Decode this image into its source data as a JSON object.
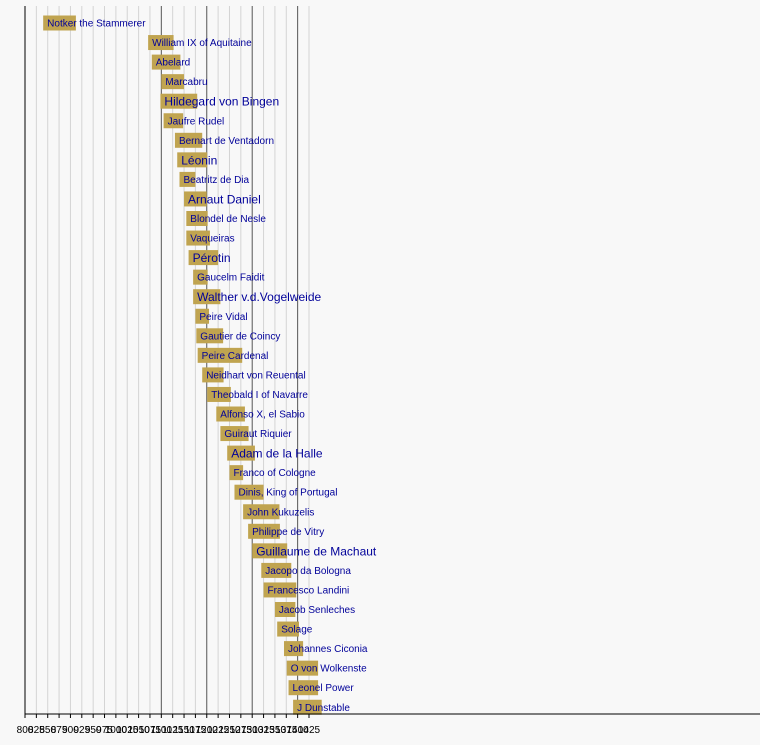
{
  "chart_data": {
    "type": "bar",
    "orientation": "horizontal-timeline",
    "title": "",
    "xlabel": "",
    "ylabel": "",
    "xlim": [
      800,
      1425
    ],
    "x_ticks": [
      800,
      825,
      850,
      875,
      900,
      925,
      950,
      975,
      1000,
      1025,
      1050,
      1075,
      1100,
      1125,
      1150,
      1175,
      1200,
      1225,
      1250,
      1275,
      1300,
      1325,
      1350,
      1375,
      1400,
      1425
    ],
    "major_gridlines": [
      1100,
      1200,
      1300,
      1400
    ],
    "grid": true,
    "bar_color": "#c0a450",
    "label_color": "#000099",
    "series": [
      {
        "name": "Notker the Stammerer",
        "start": 840,
        "end": 912,
        "emphasis": false
      },
      {
        "name": "William IX of Aquitaine",
        "start": 1071,
        "end": 1127,
        "emphasis": false
      },
      {
        "name": "Abelard",
        "start": 1079,
        "end": 1142,
        "emphasis": false
      },
      {
        "name": "Marcabru",
        "start": 1100,
        "end": 1150,
        "emphasis": false
      },
      {
        "name": "Hildegard von Bingen",
        "start": 1098,
        "end": 1179,
        "emphasis": true
      },
      {
        "name": "Jaufre Rudel",
        "start": 1105,
        "end": 1148,
        "emphasis": false
      },
      {
        "name": "Bernart de Ventadorn",
        "start": 1130,
        "end": 1190,
        "emphasis": false
      },
      {
        "name": "Léonin",
        "start": 1135,
        "end": 1201,
        "emphasis": true
      },
      {
        "name": "Beatritz de Dia",
        "start": 1140,
        "end": 1175,
        "emphasis": false
      },
      {
        "name": "Arnaut Daniel",
        "start": 1150,
        "end": 1200,
        "emphasis": true
      },
      {
        "name": "Blondel de Nesle",
        "start": 1155,
        "end": 1202,
        "emphasis": false
      },
      {
        "name": "Vaqueiras",
        "start": 1155,
        "end": 1207,
        "emphasis": false
      },
      {
        "name": "Pérotin",
        "start": 1160,
        "end": 1225,
        "emphasis": true
      },
      {
        "name": "Gaucelm Faidit",
        "start": 1170,
        "end": 1202,
        "emphasis": false
      },
      {
        "name": "Walther v.d.Vogelweide",
        "start": 1170,
        "end": 1230,
        "emphasis": true
      },
      {
        "name": "Peire Vidal",
        "start": 1175,
        "end": 1205,
        "emphasis": false
      },
      {
        "name": "Gautier de Coincy",
        "start": 1177,
        "end": 1236,
        "emphasis": false
      },
      {
        "name": "Peire Cardenal",
        "start": 1180,
        "end": 1278,
        "emphasis": false
      },
      {
        "name": "Neidhart von Reuental",
        "start": 1190,
        "end": 1237,
        "emphasis": false
      },
      {
        "name": "Theobald I of Navarre",
        "start": 1201,
        "end": 1253,
        "emphasis": false
      },
      {
        "name": "Alfonso X, el Sabio",
        "start": 1221,
        "end": 1284,
        "emphasis": false
      },
      {
        "name": "Guiraut Riquier",
        "start": 1230,
        "end": 1292,
        "emphasis": false
      },
      {
        "name": "Adam de la Halle",
        "start": 1245,
        "end": 1306,
        "emphasis": true
      },
      {
        "name": "Franco of Cologne",
        "start": 1250,
        "end": 1280,
        "emphasis": false
      },
      {
        "name": "Dinis, King of Portugal",
        "start": 1261,
        "end": 1325,
        "emphasis": false
      },
      {
        "name": "John Kukuzelis",
        "start": 1280,
        "end": 1360,
        "emphasis": false
      },
      {
        "name": "Philippe de Vitry",
        "start": 1291,
        "end": 1361,
        "emphasis": false
      },
      {
        "name": "Guillaume de Machaut",
        "start": 1300,
        "end": 1377,
        "emphasis": true
      },
      {
        "name": "Jacopo da Bologna",
        "start": 1320,
        "end": 1386,
        "emphasis": false
      },
      {
        "name": "Francesco Landini",
        "start": 1325,
        "end": 1397,
        "emphasis": false
      },
      {
        "name": "Jacob Senleches",
        "start": 1350,
        "end": 1395,
        "emphasis": false
      },
      {
        "name": "Solage",
        "start": 1355,
        "end": 1403,
        "emphasis": false
      },
      {
        "name": "Johannes Ciconia",
        "start": 1370,
        "end": 1412,
        "emphasis": false
      },
      {
        "name": "O von Wolkenste",
        "start": 1376,
        "end": 1445,
        "emphasis": false
      },
      {
        "name": "Leonel Power",
        "start": 1380,
        "end": 1445,
        "emphasis": false
      },
      {
        "name": "J Dunstable",
        "start": 1390,
        "end": 1453,
        "emphasis": false
      }
    ]
  }
}
